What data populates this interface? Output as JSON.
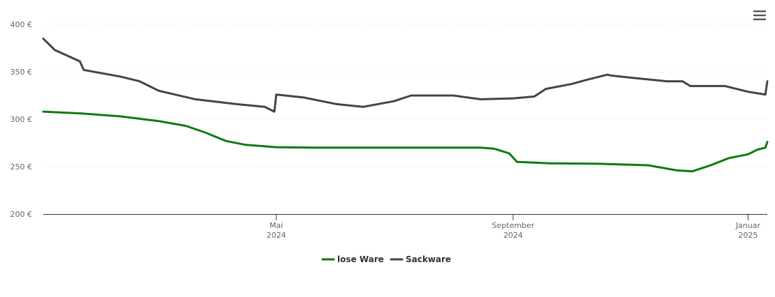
{
  "ui": {
    "menu_icon": "hamburger-menu-icon"
  },
  "colors": {
    "lose_ware": "#0f7a0f",
    "sackware": "#434348",
    "axis": "#333333",
    "grid": "#e6e6e6",
    "label": "#666666"
  },
  "chart_data": {
    "type": "line",
    "title": "",
    "xlabel": "",
    "ylabel": "",
    "ylim": [
      200,
      400
    ],
    "y_ticks": [
      200,
      250,
      300,
      350,
      400
    ],
    "y_tick_labels": [
      "200 €",
      "250 €",
      "300 €",
      "350 €",
      "400 €"
    ],
    "x_range": [
      "2024-01-01",
      "2025-01-11"
    ],
    "x_ticks": [
      {
        "date": "2024-05-01",
        "label_line1": "Mai",
        "label_line2": "2024"
      },
      {
        "date": "2024-09-01",
        "label_line1": "September",
        "label_line2": "2024"
      },
      {
        "date": "2025-01-01",
        "label_line1": "Januar",
        "label_line2": "2025"
      }
    ],
    "grid": true,
    "legend_position": "bottom-center",
    "series": [
      {
        "name": "lose Ware",
        "color": "#0f7a0f",
        "points": [
          [
            "2024-01-01",
            308
          ],
          [
            "2024-01-21",
            306
          ],
          [
            "2024-02-10",
            303
          ],
          [
            "2024-03-01",
            298
          ],
          [
            "2024-03-15",
            293
          ],
          [
            "2024-03-25",
            286
          ],
          [
            "2024-04-05",
            277
          ],
          [
            "2024-04-15",
            273
          ],
          [
            "2024-05-01",
            270.5
          ],
          [
            "2024-05-20",
            270
          ],
          [
            "2024-06-15",
            270
          ],
          [
            "2024-07-15",
            270
          ],
          [
            "2024-08-15",
            270
          ],
          [
            "2024-08-22",
            269
          ],
          [
            "2024-08-30",
            264
          ],
          [
            "2024-09-03",
            255
          ],
          [
            "2024-09-20",
            253.5
          ],
          [
            "2024-10-15",
            253
          ],
          [
            "2024-11-10",
            251.5
          ],
          [
            "2024-11-25",
            246
          ],
          [
            "2024-12-03",
            245
          ],
          [
            "2024-12-12",
            251
          ],
          [
            "2024-12-22",
            259
          ],
          [
            "2025-01-01",
            263
          ],
          [
            "2025-01-06",
            268
          ],
          [
            "2025-01-10",
            270
          ],
          [
            "2025-01-11",
            276
          ]
        ]
      },
      {
        "name": "Sackware",
        "color": "#434348",
        "points": [
          [
            "2024-01-01",
            385
          ],
          [
            "2024-01-07",
            373
          ],
          [
            "2024-01-20",
            361
          ],
          [
            "2024-01-22",
            352
          ],
          [
            "2024-02-10",
            345
          ],
          [
            "2024-02-20",
            340
          ],
          [
            "2024-03-01",
            330
          ],
          [
            "2024-03-20",
            321
          ],
          [
            "2024-04-10",
            316
          ],
          [
            "2024-04-25",
            313
          ],
          [
            "2024-04-30",
            308
          ],
          [
            "2024-05-01",
            326
          ],
          [
            "2024-05-15",
            323
          ],
          [
            "2024-06-01",
            316
          ],
          [
            "2024-06-15",
            313
          ],
          [
            "2024-07-01",
            319
          ],
          [
            "2024-07-10",
            325
          ],
          [
            "2024-08-01",
            325
          ],
          [
            "2024-08-15",
            321
          ],
          [
            "2024-09-01",
            322
          ],
          [
            "2024-09-12",
            324
          ],
          [
            "2024-09-18",
            332
          ],
          [
            "2024-10-01",
            337
          ],
          [
            "2024-10-10",
            342
          ],
          [
            "2024-10-20",
            347
          ],
          [
            "2024-10-22",
            346
          ],
          [
            "2024-11-05",
            343
          ],
          [
            "2024-11-20",
            340
          ],
          [
            "2024-11-28",
            340
          ],
          [
            "2024-12-02",
            335
          ],
          [
            "2024-12-20",
            335
          ],
          [
            "2025-01-01",
            329
          ],
          [
            "2025-01-10",
            326
          ],
          [
            "2025-01-11",
            340
          ]
        ]
      }
    ]
  }
}
